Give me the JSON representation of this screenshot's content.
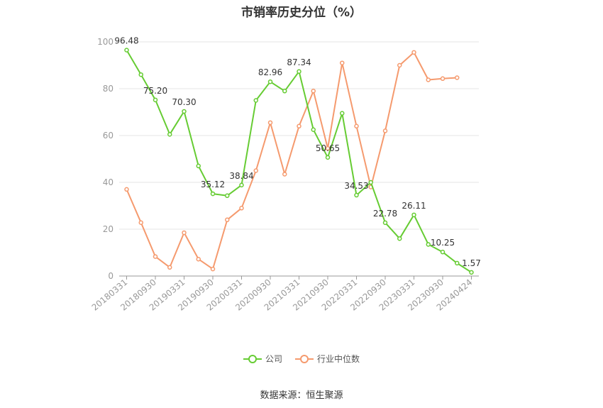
{
  "title": "市销率历史分位（%）",
  "source": "数据来源：恒生聚源",
  "colors": {
    "company": "#66cc33",
    "industry": "#f59a6e",
    "grid": "#e6e6e6",
    "axis": "#999999"
  },
  "legend": [
    {
      "label": "公司",
      "color": "#66cc33"
    },
    {
      "label": "行业中位数",
      "color": "#f59a6e"
    }
  ],
  "chart_data": {
    "type": "line",
    "title": "市销率历史分位（%）",
    "ylim": [
      0,
      100
    ],
    "yticks": [
      0,
      20,
      40,
      60,
      80,
      100
    ],
    "grid": true,
    "legend_position": "bottom",
    "x_tick_labels": [
      "20180331",
      "20180930",
      "20190331",
      "20190930",
      "20200331",
      "20200930",
      "20210331",
      "20210930",
      "20220331",
      "20220930",
      "20230331",
      "20230930",
      "20240424"
    ],
    "x_tick_indices": [
      0,
      2,
      4,
      6,
      8,
      10,
      12,
      14,
      16,
      18,
      20,
      22,
      24
    ],
    "series": [
      {
        "name": "公司",
        "color": "#66cc33",
        "values": [
          96.48,
          86,
          75.2,
          60.5,
          70.3,
          47,
          35.12,
          34.3,
          38.84,
          75,
          82.96,
          79,
          87.34,
          62.5,
          50.65,
          69.5,
          34.53,
          40,
          22.78,
          16,
          26.11,
          13.5,
          10.25,
          5.5,
          1.57
        ],
        "labels": {
          "0": "96.48",
          "2": "75.20",
          "4": "70.30",
          "6": "35.12",
          "8": "38.84",
          "10": "82.96",
          "12": "87.34",
          "14": "50.65",
          "16": "34.53",
          "18": "22.78",
          "20": "26.11",
          "22": "10.25",
          "24": "1.57"
        }
      },
      {
        "name": "行业中位数",
        "color": "#f59a6e",
        "values": [
          37,
          22.8,
          8.3,
          3.7,
          18.5,
          7.2,
          3,
          24,
          29,
          45,
          65.5,
          43.5,
          64,
          79,
          54.5,
          91,
          64,
          38,
          62,
          90,
          95.5,
          83.8,
          84.3,
          84.7
        ]
      }
    ]
  }
}
